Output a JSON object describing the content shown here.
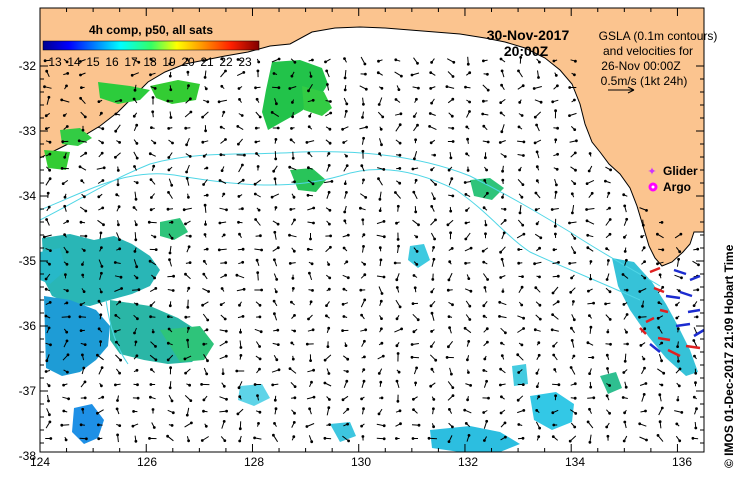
{
  "map": {
    "date": "30-Nov-2017",
    "time": "20:00Z",
    "colorbar_title": "4h comp, p50, all sats",
    "colorbar_ticks": [
      "13",
      "14",
      "15",
      "16",
      "17",
      "18",
      "19",
      "20",
      "21",
      "22",
      "23"
    ],
    "info_lines": [
      "GSLA (0.1m contours)",
      "and velocities for",
      "26-Nov 00:00Z",
      "0.5m/s (1kt 24h)"
    ],
    "legend": {
      "glider_label": "Glider",
      "argo_label": "Argo",
      "glider_color": "#cc33ff",
      "argo_color": "#ff00ff"
    },
    "credit": "© IMOS 01-Dec-2017 21:09 Hobart Time",
    "lon_ticks": [
      "124",
      "126",
      "128",
      "130",
      "132",
      "134",
      "136"
    ],
    "lat_ticks": [
      "-32",
      "-33",
      "-34",
      "-35",
      "-36",
      "-37",
      "-38"
    ],
    "land_color": "#fbc48f",
    "contour_color": "#4fd6e6"
  }
}
